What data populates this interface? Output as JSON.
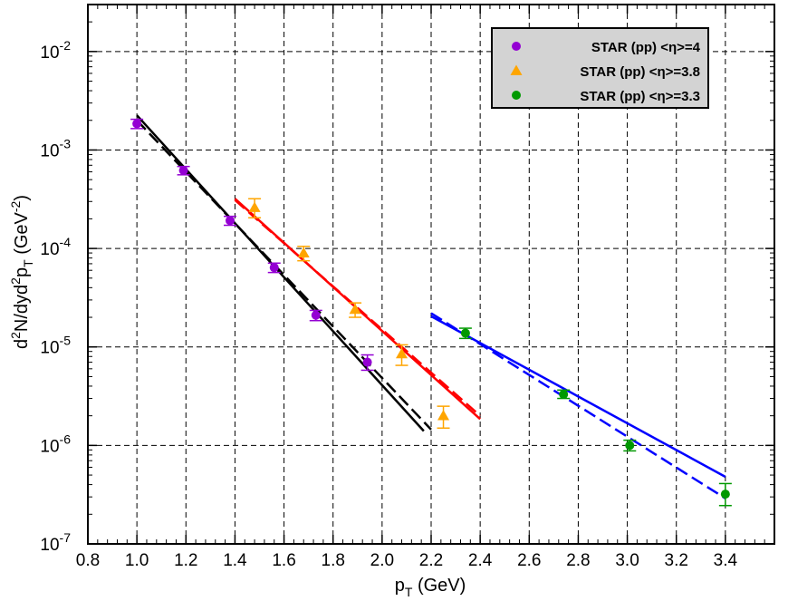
{
  "chart_data": {
    "type": "scatter",
    "title": "",
    "xlabel": {
      "base": "p",
      "sub": "T",
      "rest": " (GeV)"
    },
    "ylabel": {
      "d1": "d",
      "s1": "2",
      "mid": "N/dyd",
      "s2": "2",
      "p": "p",
      "sub": "T",
      "unit_open": " (GeV",
      "unit_exp": "-2",
      "unit_close": ")"
    },
    "xlim": [
      0.8,
      3.6
    ],
    "ylim": [
      1e-07,
      0.03
    ],
    "y_scale": "log",
    "grid": true,
    "legend_position": "top-right",
    "x_ticks": [
      "0.8",
      "1.0",
      "1.2",
      "1.4",
      "1.6",
      "1.8",
      "2.0",
      "2.2",
      "2.4",
      "2.6",
      "2.8",
      "3.0",
      "3.2",
      "3.4"
    ],
    "y_ticks": [
      {
        "value": 1e-07,
        "base": "10",
        "exp": "-7"
      },
      {
        "value": 1e-06,
        "base": "10",
        "exp": "-6"
      },
      {
        "value": 1e-05,
        "base": "10",
        "exp": "-5"
      },
      {
        "value": 0.0001,
        "base": "10",
        "exp": "-4"
      },
      {
        "value": 0.001,
        "base": "10",
        "exp": "-3"
      },
      {
        "value": 0.01,
        "base": "10",
        "exp": "-2"
      }
    ],
    "series": [
      {
        "name": "STAR (pp) <η>=4",
        "marker": "circle",
        "color": "#9400d3",
        "x": [
          1.0,
          1.19,
          1.38,
          1.56,
          1.73,
          1.94
        ],
        "y": [
          0.00185,
          0.00062,
          0.000192,
          6.4e-05,
          2.1e-05,
          7e-06
        ],
        "lo": [
          0.00165,
          0.00056,
          0.000172,
          5.7e-05,
          1.85e-05,
          5.8e-06
        ],
        "hi": [
          0.00205,
          0.00068,
          0.000212,
          7.1e-05,
          2.35e-05,
          8.3e-06
        ]
      },
      {
        "name": "STAR (pp) <η>=3.8",
        "marker": "triangle",
        "color": "#ffa500",
        "x": [
          1.48,
          1.68,
          1.89,
          2.08,
          2.25
        ],
        "y": [
          0.00026,
          9e-05,
          2.4e-05,
          8.5e-06,
          2e-06
        ],
        "lo": [
          0.000205,
          7.5e-05,
          2e-05,
          6.5e-06,
          1.5e-06
        ],
        "hi": [
          0.00032,
          0.000105,
          2.8e-05,
          1.05e-05,
          2.5e-06
        ]
      },
      {
        "name": "STAR (pp) <η>=3.3",
        "marker": "circle",
        "color": "#009900",
        "x": [
          2.34,
          2.74,
          3.01,
          3.4
        ],
        "y": [
          1.38e-05,
          3.3e-06,
          1e-06,
          3.2e-07
        ],
        "lo": [
          1.22e-05,
          3e-06,
          8.8e-07,
          2.45e-07
        ],
        "hi": [
          1.55e-05,
          3.65e-06,
          1.13e-06,
          4.1e-07
        ]
      }
    ],
    "curves": [
      {
        "color": "#000000",
        "dashed": false,
        "x": [
          1.0,
          2.17
        ],
        "y": [
          0.00225,
          1.4e-06
        ]
      },
      {
        "color": "#000000",
        "dashed": true,
        "x": [
          1.0,
          2.2
        ],
        "y": [
          0.002,
          1.45e-06
        ]
      },
      {
        "color": "#ff0000",
        "dashed": false,
        "x": [
          1.4,
          2.4
        ],
        "y": [
          0.00032,
          1.85e-06
        ]
      },
      {
        "color": "#ff0000",
        "dashed": true,
        "x": [
          1.4,
          2.4
        ],
        "y": [
          0.00031,
          2e-06
        ]
      },
      {
        "color": "#0000ff",
        "dashed": false,
        "x": [
          2.2,
          3.4
        ],
        "y": [
          2.05e-05,
          4.8e-07
        ]
      },
      {
        "color": "#0000ff",
        "dashed": true,
        "x": [
          2.2,
          3.4
        ],
        "y": [
          2.2e-05,
          2.9e-07
        ]
      }
    ]
  }
}
